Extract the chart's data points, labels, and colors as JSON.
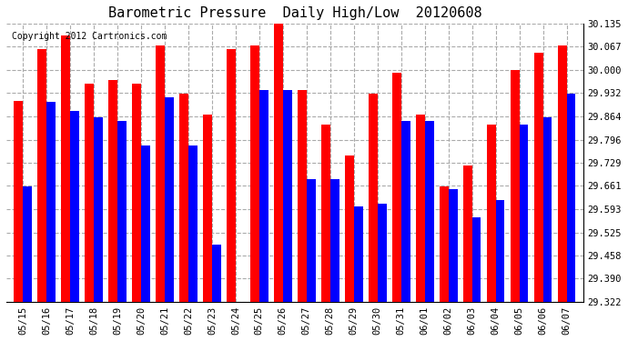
{
  "title": "Barometric Pressure  Daily High/Low  20120608",
  "copyright": "Copyright 2012 Cartronics.com",
  "dates": [
    "05/15",
    "05/16",
    "05/17",
    "05/18",
    "05/19",
    "05/20",
    "05/21",
    "05/22",
    "05/23",
    "05/24",
    "05/25",
    "05/26",
    "05/27",
    "05/28",
    "05/29",
    "05/30",
    "05/31",
    "06/01",
    "06/02",
    "06/03",
    "06/04",
    "06/05",
    "06/06",
    "06/07"
  ],
  "highs": [
    29.91,
    30.06,
    30.1,
    29.96,
    29.97,
    29.96,
    30.07,
    29.93,
    29.87,
    30.06,
    30.07,
    30.135,
    29.94,
    29.84,
    29.75,
    29.93,
    29.99,
    29.87,
    29.66,
    29.72,
    29.84,
    30.0,
    30.05,
    30.07
  ],
  "lows": [
    29.66,
    29.905,
    29.88,
    29.86,
    29.85,
    29.78,
    29.92,
    29.78,
    29.49,
    29.32,
    29.94,
    29.94,
    29.68,
    29.68,
    29.6,
    29.61,
    29.85,
    29.85,
    29.65,
    29.57,
    29.62,
    29.84,
    29.86,
    29.93
  ],
  "high_color": "#FF0000",
  "low_color": "#0000FF",
  "bg_color": "#FFFFFF",
  "plot_bg_color": "#FFFFFF",
  "grid_color": "#AAAAAA",
  "ymin": 29.322,
  "ymax": 30.135,
  "yticks": [
    29.322,
    29.39,
    29.458,
    29.525,
    29.593,
    29.661,
    29.729,
    29.796,
    29.864,
    29.932,
    30.0,
    30.067,
    30.135
  ]
}
